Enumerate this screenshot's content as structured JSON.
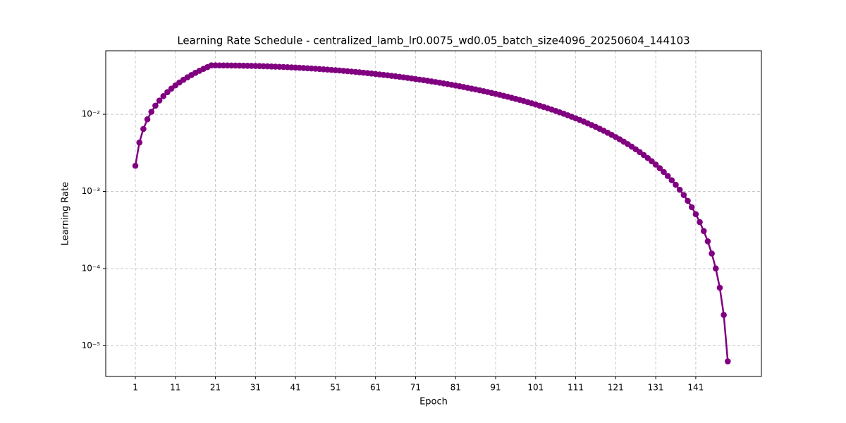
{
  "chart_data": {
    "type": "line",
    "title": "Learning Rate Schedule - centralized_lamb_lr0.0075_wd0.05_batch_size4096_20250604_144103",
    "x_label": "Epoch",
    "y_label": "Learning Rate",
    "x": [
      1,
      2,
      3,
      4,
      5,
      6,
      7,
      8,
      9,
      10,
      11,
      12,
      13,
      14,
      15,
      16,
      17,
      18,
      19,
      20,
      21,
      22,
      23,
      24,
      25,
      26,
      27,
      28,
      29,
      30,
      31,
      32,
      33,
      34,
      35,
      36,
      37,
      38,
      39,
      40,
      41,
      42,
      43,
      44,
      45,
      46,
      47,
      48,
      49,
      50,
      51,
      52,
      53,
      54,
      55,
      56,
      57,
      58,
      59,
      60,
      61,
      62,
      63,
      64,
      65,
      66,
      67,
      68,
      69,
      70,
      71,
      72,
      73,
      74,
      75,
      76,
      77,
      78,
      79,
      80,
      81,
      82,
      83,
      84,
      85,
      86,
      87,
      88,
      89,
      90,
      91,
      92,
      93,
      94,
      95,
      96,
      97,
      98,
      99,
      100,
      101,
      102,
      103,
      104,
      105,
      106,
      107,
      108,
      109,
      110,
      111,
      112,
      113,
      114,
      115,
      116,
      117,
      118,
      119,
      120,
      121,
      122,
      123,
      124,
      125,
      126,
      127,
      128,
      129,
      130,
      131,
      132,
      133,
      134,
      135,
      136,
      137,
      138,
      139,
      140,
      141,
      142,
      143,
      144,
      145,
      146,
      147,
      148,
      149
    ],
    "series": [
      {
        "name": "Learning Rate",
        "color": "#800080",
        "values": [
          0.00215,
          0.0043,
          0.00645,
          0.0086,
          0.01075,
          0.0129,
          0.01505,
          0.0172,
          0.01935,
          0.0215,
          0.02365,
          0.0258,
          0.02795,
          0.0301,
          0.03225,
          0.0344,
          0.03655,
          0.0387,
          0.04085,
          0.043,
          0.043,
          0.04297,
          0.04294,
          0.0429,
          0.04284,
          0.04277,
          0.04269,
          0.0426,
          0.04249,
          0.04238,
          0.04225,
          0.0421,
          0.04195,
          0.04178,
          0.0416,
          0.04141,
          0.04121,
          0.041,
          0.04077,
          0.04054,
          0.04029,
          0.04003,
          0.03976,
          0.03948,
          0.03919,
          0.03889,
          0.03858,
          0.03826,
          0.03793,
          0.03759,
          0.03724,
          0.03689,
          0.03652,
          0.03614,
          0.03576,
          0.03537,
          0.03496,
          0.03455,
          0.03414,
          0.03371,
          0.03328,
          0.03284,
          0.0324,
          0.03195,
          0.03149,
          0.03103,
          0.03056,
          0.03009,
          0.02961,
          0.02912,
          0.02864,
          0.02814,
          0.02765,
          0.02715,
          0.02665,
          0.02614,
          0.02563,
          0.02512,
          0.02461,
          0.02409,
          0.02357,
          0.02306,
          0.02254,
          0.02202,
          0.0215,
          0.02098,
          0.02046,
          0.01994,
          0.01943,
          0.01891,
          0.01839,
          0.01788,
          0.01737,
          0.01686,
          0.01635,
          0.01585,
          0.01535,
          0.01486,
          0.01436,
          0.01388,
          0.01339,
          0.01291,
          0.01244,
          0.01197,
          0.01151,
          0.01105,
          0.0106,
          0.01016,
          0.00972,
          0.00929,
          0.00886,
          0.00845,
          0.00804,
          0.00763,
          0.00724,
          0.00686,
          0.00648,
          0.00611,
          0.00576,
          0.005406,
          0.005068,
          0.004737,
          0.004417,
          0.004106,
          0.003806,
          0.003516,
          0.003237,
          0.002968,
          0.00271,
          0.002463,
          0.002227,
          0.002002,
          0.001789,
          0.001587,
          0.001397,
          0.001219,
          0.001052,
          0.000898,
          0.000755,
          0.000625,
          0.000507,
          0.0004005,
          0.0003069,
          0.0002256,
          0.0001568,
          0.0001004,
          5.65e-05,
          2.51e-05,
          6.28e-06
        ]
      }
    ],
    "xlim": [
      -6.4,
      157.4
    ],
    "xticks": [
      1,
      11,
      21,
      31,
      41,
      51,
      61,
      71,
      81,
      91,
      101,
      111,
      121,
      131,
      141
    ],
    "ylim": [
      4e-06,
      0.0665
    ],
    "y_scale": "log",
    "yticks": [
      {
        "value": 1e-05,
        "label": "10⁻⁵"
      },
      {
        "value": 0.0001,
        "label": "10⁻⁴"
      },
      {
        "value": 0.001,
        "label": "10⁻³"
      },
      {
        "value": 0.01,
        "label": "10⁻²"
      }
    ],
    "grid": true,
    "marker": "o"
  }
}
